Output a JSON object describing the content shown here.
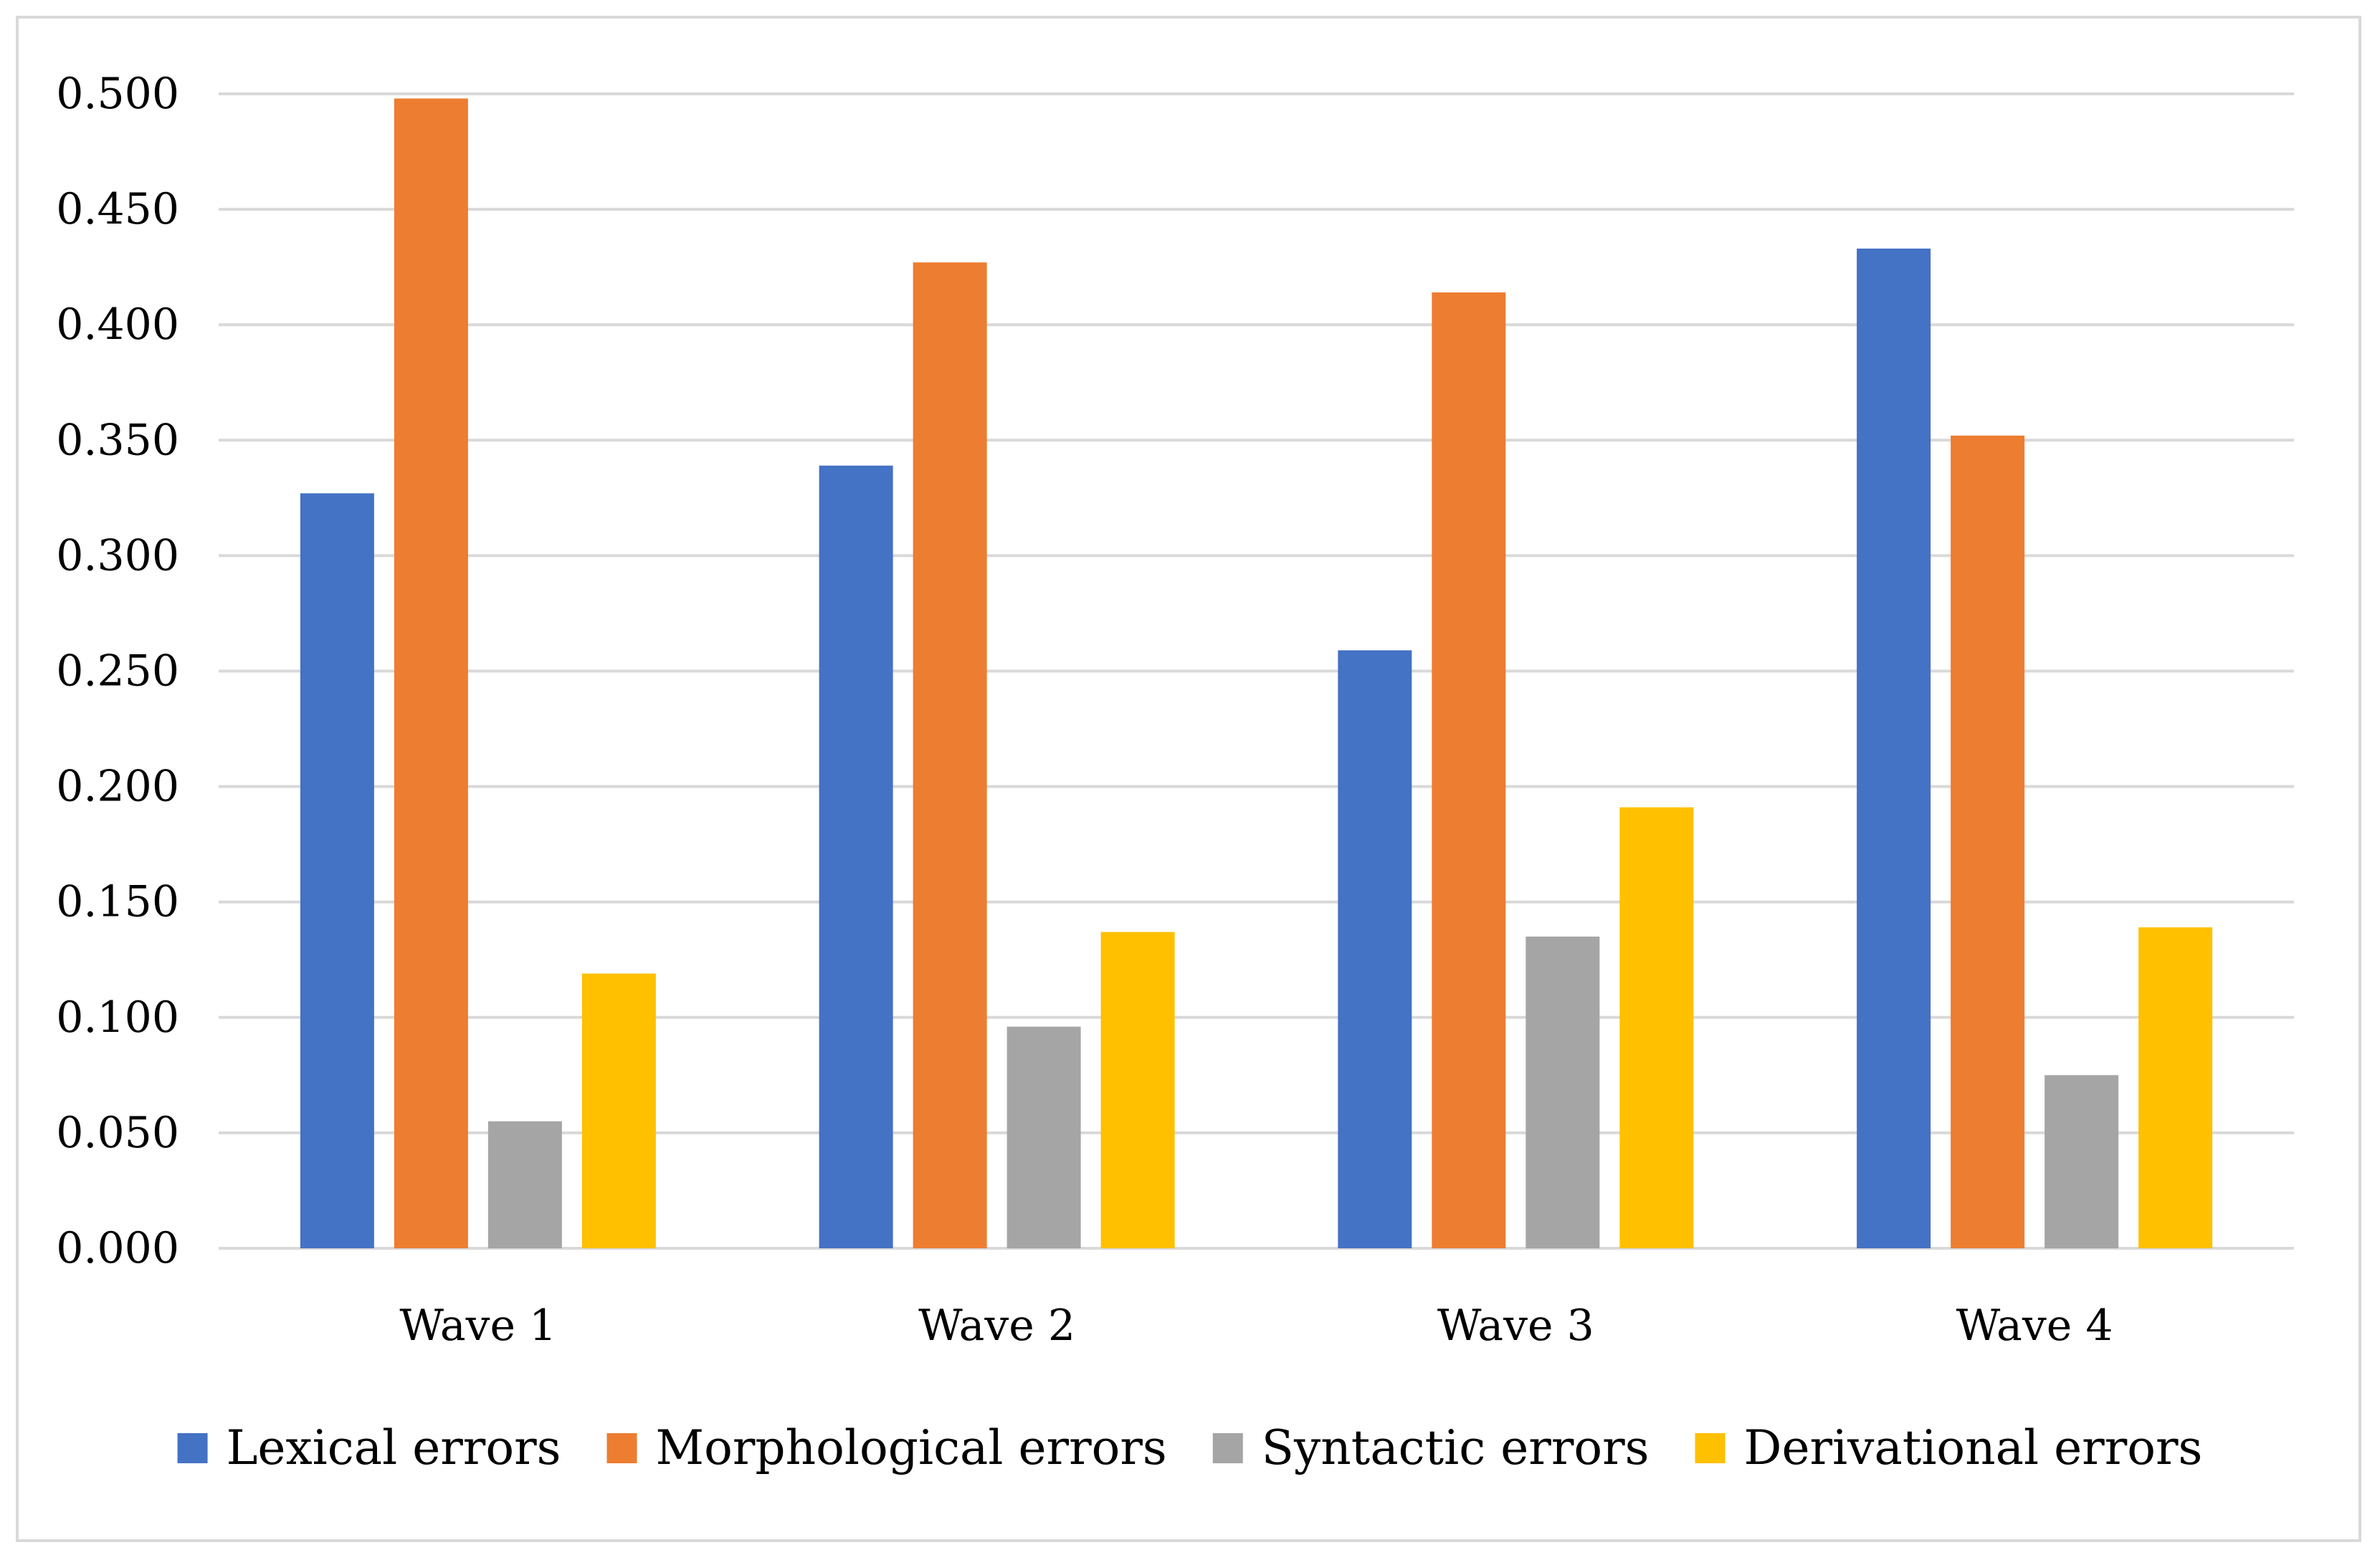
{
  "chart_data": {
    "type": "bar",
    "title": "",
    "xlabel": "",
    "ylabel": "",
    "categories": [
      "Wave 1",
      "Wave 2",
      "Wave 3",
      "Wave 4"
    ],
    "series": [
      {
        "name": "Lexical errors",
        "color": "#4472c4",
        "values": [
          0.327,
          0.339,
          0.259,
          0.433
        ]
      },
      {
        "name": "Morphological errors",
        "color": "#ed7d31",
        "values": [
          0.498,
          0.427,
          0.414,
          0.352
        ]
      },
      {
        "name": "Syntactic errors",
        "color": "#a5a5a5",
        "values": [
          0.055,
          0.096,
          0.135,
          0.075
        ]
      },
      {
        "name": "Derivational errors",
        "color": "#ffc000",
        "values": [
          0.119,
          0.137,
          0.191,
          0.139
        ]
      }
    ],
    "y_ticks": [
      "0.000",
      "0.050",
      "0.100",
      "0.150",
      "0.200",
      "0.250",
      "0.300",
      "0.350",
      "0.400",
      "0.450",
      "0.500"
    ],
    "ylim": [
      0,
      0.5
    ],
    "grid": true,
    "legend_position": "bottom"
  }
}
